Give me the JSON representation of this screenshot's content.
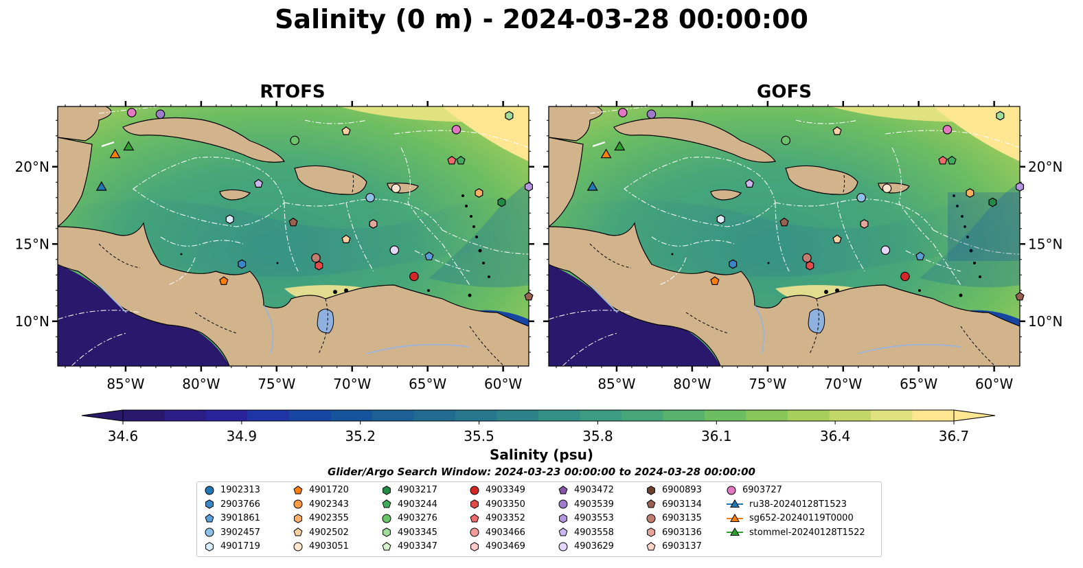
{
  "title": "Salinity (0 m) - 2024-03-28 00:00:00",
  "panels": [
    {
      "title": "RTOFS"
    },
    {
      "title": "GOFS"
    }
  ],
  "axes": {
    "lon_ticks": [
      "85°W",
      "80°W",
      "75°W",
      "70°W",
      "65°W",
      "60°W"
    ],
    "lat_ticks": [
      "20°N",
      "15°N",
      "10°N"
    ],
    "lon_values": [
      -85,
      -80,
      -75,
      -70,
      -65,
      -60
    ],
    "lat_values": [
      20,
      15,
      10
    ],
    "lon_range": [
      -89.5,
      -58.3
    ],
    "lat_range": [
      7.1,
      23.9
    ]
  },
  "colorbar": {
    "label": "Salinity (psu)",
    "ticks": [
      "34.6",
      "34.9",
      "35.2",
      "35.5",
      "35.8",
      "36.1",
      "36.4",
      "36.7"
    ],
    "range": [
      34.6,
      36.7
    ],
    "extend": "both",
    "colormap": "haline",
    "colors": [
      "#2a186c",
      "#2b1d86",
      "#29249c",
      "#1e35a6",
      "#1746a2",
      "#15539b",
      "#1c6095",
      "#216b91",
      "#27778e",
      "#2e838a",
      "#348f86",
      "#3c9b81",
      "#47a779",
      "#57b26e",
      "#6dbd62",
      "#89c659",
      "#a6cf5b",
      "#c3d869",
      "#dfe27f",
      "#fde692"
    ]
  },
  "search_window": "Glider/Argo Search Window: 2024-03-23 00:00:00 to 2024-03-28 00:00:00",
  "legend": {
    "columns": [
      [
        {
          "label": "1902313",
          "marker": "circle",
          "color": "#1f77b4"
        },
        {
          "label": "2903766",
          "marker": "hexagon",
          "color": "#3a86c6"
        },
        {
          "label": "3901861",
          "marker": "pentagon",
          "color": "#5b9fd8"
        },
        {
          "label": "3902457",
          "marker": "circle",
          "color": "#8ec0e8"
        },
        {
          "label": "4901719",
          "marker": "hexagon",
          "color": "#d9ecfa"
        }
      ],
      [
        {
          "label": "4901720",
          "marker": "pentagon",
          "color": "#ff7f0e"
        },
        {
          "label": "4902343",
          "marker": "circle",
          "color": "#fd9a42"
        },
        {
          "label": "4902355",
          "marker": "hexagon",
          "color": "#fdb064"
        },
        {
          "label": "4902502",
          "marker": "pentagon",
          "color": "#fdd0a2"
        },
        {
          "label": "4903051",
          "marker": "circle",
          "color": "#fee6ce"
        }
      ],
      [
        {
          "label": "4903217",
          "marker": "hexagon",
          "color": "#238b45"
        },
        {
          "label": "4903244",
          "marker": "pentagon",
          "color": "#41ab5d"
        },
        {
          "label": "4903276",
          "marker": "circle",
          "color": "#6cc46a"
        },
        {
          "label": "4903345",
          "marker": "hexagon",
          "color": "#a1dc9b"
        },
        {
          "label": "4903347",
          "marker": "pentagon",
          "color": "#d6f2cc"
        }
      ],
      [
        {
          "label": "4903349",
          "marker": "circle",
          "color": "#d62728"
        },
        {
          "label": "4903350",
          "marker": "hexagon",
          "color": "#e34a4a"
        },
        {
          "label": "4903352",
          "marker": "pentagon",
          "color": "#ee6b6b"
        },
        {
          "label": "4903466",
          "marker": "circle",
          "color": "#f59a9a"
        },
        {
          "label": "4903469",
          "marker": "hexagon",
          "color": "#fcc9c9"
        }
      ],
      [
        {
          "label": "4903472",
          "marker": "pentagon",
          "color": "#8856a7"
        },
        {
          "label": "4903539",
          "marker": "circle",
          "color": "#9e7cc9"
        },
        {
          "label": "4903553",
          "marker": "hexagon",
          "color": "#b497e0"
        },
        {
          "label": "4903558",
          "marker": "pentagon",
          "color": "#cdb5f0"
        },
        {
          "label": "4903629",
          "marker": "circle",
          "color": "#e6d6fa"
        }
      ],
      [
        {
          "label": "6900893",
          "marker": "hexagon",
          "color": "#6d4030"
        },
        {
          "label": "6903134",
          "marker": "pentagon",
          "color": "#9a6050"
        },
        {
          "label": "6903135",
          "marker": "circle",
          "color": "#c07e70"
        },
        {
          "label": "6903136",
          "marker": "hexagon",
          "color": "#e4a59a"
        },
        {
          "label": "6903137",
          "marker": "pentagon",
          "color": "#fcd5c8"
        }
      ],
      [
        {
          "label": "6903727",
          "marker": "circle",
          "color": "#e377c2"
        },
        {
          "label": "ru38-20240128T1523",
          "marker": "triangle-line",
          "color": "#1f77b4"
        },
        {
          "label": "sg652-20240119T0000",
          "marker": "triangle-line",
          "color": "#ff7f0e"
        },
        {
          "label": "stommel-20240128T1522",
          "marker": "triangle-line",
          "color": "#2ca02c"
        }
      ]
    ]
  },
  "floats": [
    {
      "id": "6903727",
      "lon": -84.6,
      "lat": 23.5,
      "marker": "circle",
      "color": "#e377c2"
    },
    {
      "id": "4903539",
      "lon": -82.7,
      "lat": 23.4,
      "marker": "circle",
      "color": "#9e7cc9"
    },
    {
      "id": "4902502",
      "lon": -70.4,
      "lat": 22.3,
      "marker": "pentagon",
      "color": "#fdd0a2"
    },
    {
      "id": "4903276",
      "lon": -73.8,
      "lat": 21.7,
      "marker": "circle",
      "color": "#6cc46a"
    },
    {
      "id": "6903727",
      "lon": -63.1,
      "lat": 22.4,
      "marker": "circle",
      "color": "#e377c2"
    },
    {
      "id": "4903345",
      "lon": -59.6,
      "lat": 23.3,
      "marker": "hexagon",
      "color": "#a1dc9b"
    },
    {
      "id": "4903352",
      "lon": -63.4,
      "lat": 20.4,
      "marker": "pentagon",
      "color": "#ee6b6b"
    },
    {
      "id": "4903244",
      "lon": -62.8,
      "lat": 20.4,
      "marker": "pentagon",
      "color": "#41ab5d"
    },
    {
      "id": "4903558",
      "lon": -76.2,
      "lat": 18.9,
      "marker": "pentagon",
      "color": "#cdb5f0"
    },
    {
      "id": "4903051",
      "lon": -67.1,
      "lat": 18.6,
      "marker": "circle",
      "color": "#fee6ce"
    },
    {
      "id": "4902355",
      "lon": -61.6,
      "lat": 18.3,
      "marker": "hexagon",
      "color": "#fdb064"
    },
    {
      "id": "3902457",
      "lon": -68.8,
      "lat": 18.0,
      "marker": "circle",
      "color": "#8ec0e8"
    },
    {
      "id": "4903217",
      "lon": -60.1,
      "lat": 17.7,
      "marker": "hexagon",
      "color": "#238b45"
    },
    {
      "id": "4903553",
      "lon": -58.3,
      "lat": 18.7,
      "marker": "hexagon",
      "color": "#b497e0"
    },
    {
      "id": "4901719",
      "lon": -78.1,
      "lat": 16.6,
      "marker": "hexagon",
      "color": "#d9ecfa"
    },
    {
      "id": "6903134",
      "lon": -73.9,
      "lat": 16.4,
      "marker": "pentagon",
      "color": "#9a6050"
    },
    {
      "id": "6903136",
      "lon": -68.6,
      "lat": 16.3,
      "marker": "hexagon",
      "color": "#e4a59a"
    },
    {
      "id": "4902502",
      "lon": -70.4,
      "lat": 15.3,
      "marker": "pentagon",
      "color": "#fdd0a2"
    },
    {
      "id": "4903629",
      "lon": -67.2,
      "lat": 14.6,
      "marker": "circle",
      "color": "#e6d6fa"
    },
    {
      "id": "3901861",
      "lon": -64.9,
      "lat": 14.2,
      "marker": "pentagon",
      "color": "#5b9fd8"
    },
    {
      "id": "6903135",
      "lon": -72.4,
      "lat": 14.1,
      "marker": "circle",
      "color": "#c07e70"
    },
    {
      "id": "4903350",
      "lon": -72.2,
      "lat": 13.6,
      "marker": "hexagon",
      "color": "#e34a4a"
    },
    {
      "id": "2903766",
      "lon": -77.3,
      "lat": 13.7,
      "marker": "hexagon",
      "color": "#3a86c6"
    },
    {
      "id": "4901720",
      "lon": -78.5,
      "lat": 12.6,
      "marker": "pentagon",
      "color": "#ff7f0e"
    },
    {
      "id": "4903349",
      "lon": -65.9,
      "lat": 12.9,
      "marker": "circle",
      "color": "#d62728"
    },
    {
      "id": "6903134",
      "lon": -58.3,
      "lat": 11.6,
      "marker": "pentagon",
      "color": "#9a6050"
    }
  ],
  "gliders": [
    {
      "id": "ru38-20240128T1523",
      "lon": -86.6,
      "lat": 18.7,
      "color": "#1f77b4"
    },
    {
      "id": "sg652-20240119T0000",
      "lon": -85.7,
      "lat": 20.8,
      "color": "#ff7f0e"
    },
    {
      "id": "stommel-20240128T1522",
      "lon": -84.8,
      "lat": 21.3,
      "color": "#2ca02c"
    }
  ]
}
